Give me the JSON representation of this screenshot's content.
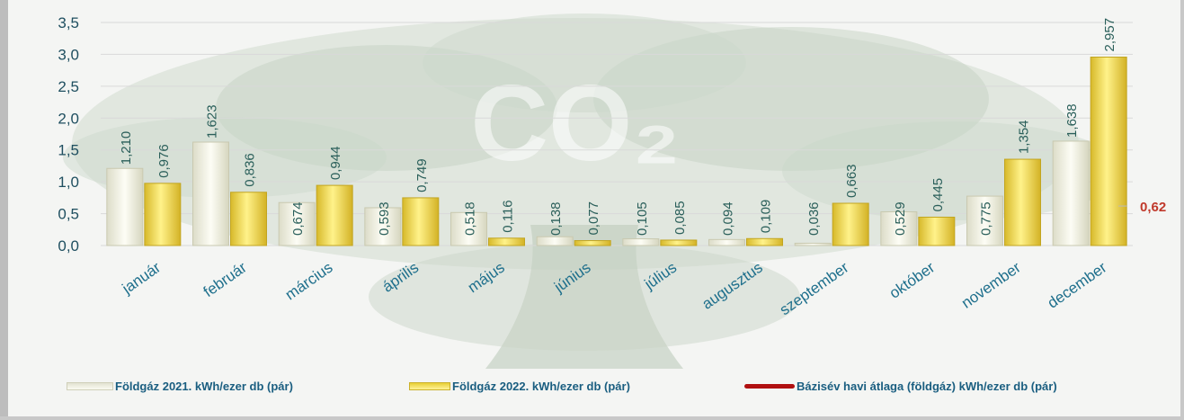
{
  "chart_data": {
    "type": "bar",
    "categories": [
      "január",
      "február",
      "március",
      "április",
      "május",
      "június",
      "július",
      "augusztus",
      "szeptember",
      "október",
      "november",
      "december"
    ],
    "series": [
      {
        "name": "Földgáz 2021. kWh/ezer db (pár)",
        "values": [
          1.21,
          1.623,
          0.674,
          0.593,
          0.518,
          0.138,
          0.105,
          0.094,
          0.036,
          0.529,
          0.775,
          1.638
        ],
        "labels": [
          "1,210",
          "1,623",
          "0,674",
          "0,593",
          "0,518",
          "0,138",
          "0,105",
          "0,094",
          "0,036",
          "0,529",
          "0,775",
          "1,638"
        ],
        "color": "#f3f3e4"
      },
      {
        "name": "Földgáz 2022. kWh/ezer db (pár)",
        "values": [
          0.976,
          0.836,
          0.944,
          0.749,
          0.116,
          0.077,
          0.085,
          0.109,
          0.663,
          0.445,
          1.354,
          2.957
        ],
        "labels": [
          "0,976",
          "0,836",
          "0,944",
          "0,749",
          "0,116",
          "0,077",
          "0,085",
          "0,109",
          "0,663",
          "0,445",
          "1,354",
          "2,957"
        ],
        "color": "#f5d94a"
      }
    ],
    "reference_line": {
      "name": "Bázisév havi átlaga (földgáz) kWh/ezer db (pár)",
      "value": 0.62,
      "label": "0,62",
      "color": "#b01010"
    },
    "ylim": [
      0,
      3.5
    ],
    "yticks": [
      0,
      0.5,
      1.0,
      1.5,
      2.0,
      2.5,
      3.0,
      3.5
    ],
    "ytick_labels": [
      "0,0",
      "0,5",
      "1,0",
      "1,5",
      "2,0",
      "2,5",
      "3,0",
      "3,5"
    ],
    "grid": true,
    "legend_position": "bottom",
    "watermark": "CO₂"
  }
}
